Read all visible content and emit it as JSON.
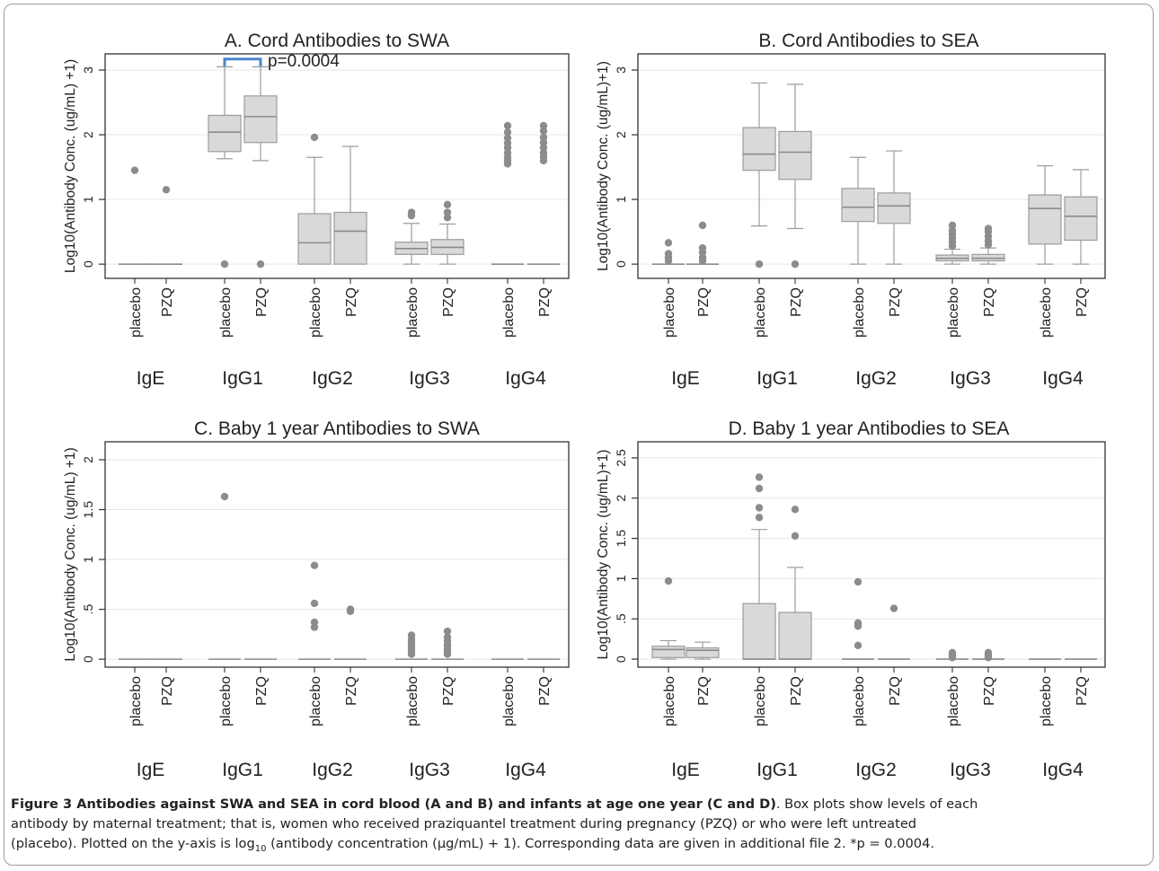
{
  "chart_data": [
    {
      "type": "box",
      "panel": "A",
      "title": "A. Cord Antibodies to SWA",
      "ylabel": "Log10(Antibody Conc. (ug/mL) +1)",
      "ylim": [
        -0.22,
        3.25
      ],
      "yticks": [
        0,
        1,
        2,
        3
      ],
      "ytick_labels": [
        "0",
        "1",
        "2",
        "3"
      ],
      "groups": [
        "IgE",
        "IgG1",
        "IgG2",
        "IgG3",
        "IgG4"
      ],
      "treatments": [
        "placebo",
        "PZQ"
      ],
      "annotation": {
        "text": "p=0.0004",
        "group_index": 1,
        "y": 3.17
      },
      "boxes": [
        {
          "group": "IgE",
          "treatment": "placebo",
          "min": 0,
          "q1": 0,
          "median": 0,
          "q3": 0,
          "max": 0,
          "outliers": [
            1.45
          ]
        },
        {
          "group": "IgE",
          "treatment": "PZQ",
          "min": 0,
          "q1": 0,
          "median": 0,
          "q3": 0,
          "max": 0,
          "outliers": [
            1.15
          ]
        },
        {
          "group": "IgG1",
          "treatment": "placebo",
          "min": 1.63,
          "q1": 1.74,
          "median": 2.04,
          "q3": 2.3,
          "max": 3.05,
          "outliers": [
            0
          ]
        },
        {
          "group": "IgG1",
          "treatment": "PZQ",
          "min": 1.6,
          "q1": 1.88,
          "median": 2.28,
          "q3": 2.6,
          "max": 3.05,
          "outliers": [
            0
          ]
        },
        {
          "group": "IgG2",
          "treatment": "placebo",
          "min": 0,
          "q1": 0,
          "median": 0.33,
          "q3": 0.78,
          "max": 1.65,
          "outliers": [
            1.96
          ]
        },
        {
          "group": "IgG2",
          "treatment": "PZQ",
          "min": 0,
          "q1": 0,
          "median": 0.51,
          "q3": 0.8,
          "max": 1.82,
          "outliers": []
        },
        {
          "group": "IgG3",
          "treatment": "placebo",
          "min": 0,
          "q1": 0.15,
          "median": 0.24,
          "q3": 0.34,
          "max": 0.63,
          "outliers": [
            0.75,
            0.8
          ]
        },
        {
          "group": "IgG3",
          "treatment": "PZQ",
          "min": 0,
          "q1": 0.15,
          "median": 0.26,
          "q3": 0.38,
          "max": 0.62,
          "outliers": [
            0.72,
            0.8,
            0.92
          ]
        },
        {
          "group": "IgG4",
          "treatment": "placebo",
          "min": 0,
          "q1": 0,
          "median": 0,
          "q3": 0,
          "max": 0,
          "outliers": [
            1.55,
            1.6,
            1.65,
            1.72,
            1.8,
            1.87,
            1.95,
            2.04,
            2.14
          ]
        },
        {
          "group": "IgG4",
          "treatment": "PZQ",
          "min": 0,
          "q1": 0,
          "median": 0,
          "q3": 0,
          "max": 0,
          "outliers": [
            1.6,
            1.66,
            1.72,
            1.8,
            1.88,
            1.96,
            2.06,
            2.14
          ]
        }
      ]
    },
    {
      "type": "box",
      "panel": "B",
      "title": "B. Cord Antibodies to SEA",
      "ylabel": "Log10(Antibody Conc. (ug/mL)+1)",
      "ylim": [
        -0.22,
        3.25
      ],
      "yticks": [
        0,
        1,
        2,
        3
      ],
      "ytick_labels": [
        "0",
        "1",
        "2",
        "3"
      ],
      "groups": [
        "IgE",
        "IgG1",
        "IgG2",
        "IgG3",
        "IgG4"
      ],
      "treatments": [
        "placebo",
        "PZQ"
      ],
      "boxes": [
        {
          "group": "IgE",
          "treatment": "placebo",
          "min": 0,
          "q1": 0,
          "median": 0,
          "q3": 0,
          "max": 0,
          "outliers": [
            0.05,
            0.1,
            0.16,
            0.33
          ]
        },
        {
          "group": "IgE",
          "treatment": "PZQ",
          "min": 0,
          "q1": 0,
          "median": 0,
          "q3": 0,
          "max": 0,
          "outliers": [
            0.05,
            0.1,
            0.18,
            0.25,
            0.6
          ]
        },
        {
          "group": "IgG1",
          "treatment": "placebo",
          "min": 0.59,
          "q1": 1.45,
          "median": 1.7,
          "q3": 2.11,
          "max": 2.8,
          "outliers": [
            0
          ]
        },
        {
          "group": "IgG1",
          "treatment": "PZQ",
          "min": 0.55,
          "q1": 1.31,
          "median": 1.73,
          "q3": 2.05,
          "max": 2.78,
          "outliers": [
            0
          ]
        },
        {
          "group": "IgG2",
          "treatment": "placebo",
          "min": 0,
          "q1": 0.66,
          "median": 0.88,
          "q3": 1.17,
          "max": 1.65,
          "outliers": []
        },
        {
          "group": "IgG2",
          "treatment": "PZQ",
          "min": 0,
          "q1": 0.63,
          "median": 0.9,
          "q3": 1.1,
          "max": 1.75,
          "outliers": []
        },
        {
          "group": "IgG3",
          "treatment": "placebo",
          "min": 0,
          "q1": 0.05,
          "median": 0.09,
          "q3": 0.14,
          "max": 0.23,
          "outliers": [
            0.28,
            0.34,
            0.4,
            0.46,
            0.52,
            0.6
          ]
        },
        {
          "group": "IgG3",
          "treatment": "PZQ",
          "min": 0,
          "q1": 0.05,
          "median": 0.09,
          "q3": 0.15,
          "max": 0.25,
          "outliers": [
            0.3,
            0.36,
            0.43,
            0.5,
            0.55
          ]
        },
        {
          "group": "IgG4",
          "treatment": "placebo",
          "min": 0,
          "q1": 0.31,
          "median": 0.86,
          "q3": 1.07,
          "max": 1.52,
          "outliers": []
        },
        {
          "group": "IgG4",
          "treatment": "PZQ",
          "min": 0,
          "q1": 0.37,
          "median": 0.74,
          "q3": 1.04,
          "max": 1.46,
          "outliers": []
        }
      ]
    },
    {
      "type": "box",
      "panel": "C",
      "title": "C. Baby 1 year Antibodies to SWA",
      "ylabel": "Log10(Antibody Conc. (ug/mL) +1)",
      "ylim": [
        -0.08,
        2.18
      ],
      "yticks": [
        0,
        0.5,
        1,
        1.5,
        2
      ],
      "ytick_labels": [
        "0",
        ".5",
        "1",
        "1.5",
        "2"
      ],
      "groups": [
        "IgE",
        "IgG1",
        "IgG2",
        "IgG3",
        "IgG4"
      ],
      "treatments": [
        "placebo",
        "PZQ"
      ],
      "boxes": [
        {
          "group": "IgE",
          "treatment": "placebo",
          "min": 0,
          "q1": 0,
          "median": 0,
          "q3": 0,
          "max": 0,
          "outliers": []
        },
        {
          "group": "IgE",
          "treatment": "PZQ",
          "min": 0,
          "q1": 0,
          "median": 0,
          "q3": 0,
          "max": 0,
          "outliers": []
        },
        {
          "group": "IgG1",
          "treatment": "placebo",
          "min": 0,
          "q1": 0,
          "median": 0,
          "q3": 0,
          "max": 0,
          "outliers": [
            1.63
          ]
        },
        {
          "group": "IgG1",
          "treatment": "PZQ",
          "min": 0,
          "q1": 0,
          "median": 0,
          "q3": 0,
          "max": 0,
          "outliers": []
        },
        {
          "group": "IgG2",
          "treatment": "placebo",
          "min": 0,
          "q1": 0,
          "median": 0,
          "q3": 0,
          "max": 0,
          "outliers": [
            0.32,
            0.37,
            0.56,
            0.94
          ]
        },
        {
          "group": "IgG2",
          "treatment": "PZQ",
          "min": 0,
          "q1": 0,
          "median": 0,
          "q3": 0,
          "max": 0,
          "outliers": [
            0.48,
            0.5
          ]
        },
        {
          "group": "IgG3",
          "treatment": "placebo",
          "min": 0,
          "q1": 0,
          "median": 0,
          "q3": 0,
          "max": 0,
          "outliers": [
            0.05,
            0.08,
            0.11,
            0.14,
            0.17,
            0.2,
            0.24
          ]
        },
        {
          "group": "IgG3",
          "treatment": "PZQ",
          "min": 0,
          "q1": 0,
          "median": 0,
          "q3": 0,
          "max": 0,
          "outliers": [
            0.05,
            0.08,
            0.11,
            0.14,
            0.18,
            0.22,
            0.28
          ]
        },
        {
          "group": "IgG4",
          "treatment": "placebo",
          "min": 0,
          "q1": 0,
          "median": 0,
          "q3": 0,
          "max": 0,
          "outliers": []
        },
        {
          "group": "IgG4",
          "treatment": "PZQ",
          "min": 0,
          "q1": 0,
          "median": 0,
          "q3": 0,
          "max": 0,
          "outliers": []
        }
      ]
    },
    {
      "type": "box",
      "panel": "D",
      "title": "D. Baby 1 year Antibodies to SEA",
      "ylabel": "Log10(Antibody Conc. (ug/mL)+1)",
      "ylim": [
        -0.1,
        2.7
      ],
      "yticks": [
        0,
        0.5,
        1,
        1.5,
        2,
        2.5
      ],
      "ytick_labels": [
        "0",
        ".5",
        "1",
        "1.5",
        "2",
        "2.5"
      ],
      "groups": [
        "IgE",
        "IgG1",
        "IgG2",
        "IgG3",
        "IgG4"
      ],
      "treatments": [
        "placebo",
        "PZQ"
      ],
      "boxes": [
        {
          "group": "IgE",
          "treatment": "placebo",
          "min": 0,
          "q1": 0.02,
          "median": 0.12,
          "q3": 0.16,
          "max": 0.23,
          "outliers": [
            0.97
          ]
        },
        {
          "group": "IgE",
          "treatment": "PZQ",
          "min": 0,
          "q1": 0.02,
          "median": 0.11,
          "q3": 0.14,
          "max": 0.21,
          "outliers": []
        },
        {
          "group": "IgG1",
          "treatment": "placebo",
          "min": 0,
          "q1": 0,
          "median": 0,
          "q3": 0.69,
          "max": 1.61,
          "outliers": [
            1.76,
            1.88,
            2.12,
            2.26
          ]
        },
        {
          "group": "IgG1",
          "treatment": "PZQ",
          "min": 0,
          "q1": 0,
          "median": 0,
          "q3": 0.58,
          "max": 1.14,
          "outliers": [
            1.53,
            1.86
          ]
        },
        {
          "group": "IgG2",
          "treatment": "placebo",
          "min": 0,
          "q1": 0,
          "median": 0,
          "q3": 0,
          "max": 0,
          "outliers": [
            0.17,
            0.41,
            0.45,
            0.96
          ]
        },
        {
          "group": "IgG2",
          "treatment": "PZQ",
          "min": 0,
          "q1": 0,
          "median": 0,
          "q3": 0,
          "max": 0,
          "outliers": [
            0.63
          ]
        },
        {
          "group": "IgG3",
          "treatment": "placebo",
          "min": 0,
          "q1": 0,
          "median": 0,
          "q3": 0,
          "max": 0,
          "outliers": [
            0.02,
            0.05,
            0.08
          ]
        },
        {
          "group": "IgG3",
          "treatment": "PZQ",
          "min": 0,
          "q1": 0,
          "median": 0,
          "q3": 0,
          "max": 0,
          "outliers": [
            0.02,
            0.05,
            0.08
          ]
        },
        {
          "group": "IgG4",
          "treatment": "placebo",
          "min": 0,
          "q1": 0,
          "median": 0,
          "q3": 0,
          "max": 0,
          "outliers": []
        },
        {
          "group": "IgG4",
          "treatment": "PZQ",
          "min": 0,
          "q1": 0,
          "median": 0,
          "q3": 0,
          "max": 0,
          "outliers": []
        }
      ]
    }
  ],
  "caption": {
    "bold": "Figure 3 Antibodies against SWA and SEA in cord blood (A and B) and infants at age one year (C and D)",
    "line1_rest": ". Box plots show levels of each",
    "line2": "antibody by maternal treatment; that is, women who received praziquantel treatment during pregnancy (PZQ) or who were left untreated",
    "line3_pre": "(placebo). Plotted on the y-axis is log",
    "line3_sub": "10",
    "line3_post": " (antibody concentration (µg/mL) + 1). Corresponding data are given in additional file 2. *p = 0.0004."
  },
  "colors": {
    "box_fill": "#d9d9d9",
    "box_stroke": "#9c9c9c",
    "median": "#8a8a8a",
    "outlier": "#8c8c8c",
    "gridline": "#e6e6e6",
    "axis": "#333333",
    "annotation_bracket": "#4a86c8"
  }
}
